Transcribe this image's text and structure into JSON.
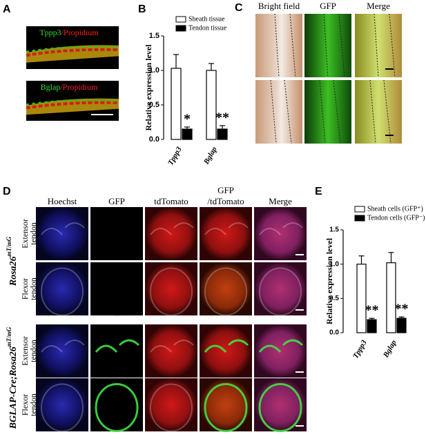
{
  "panel_labels": [
    "A",
    "B",
    "C",
    "D",
    "E"
  ],
  "panel_a": {
    "images": [
      {
        "marker": "Tppp3",
        "stain": "/Propidium"
      },
      {
        "marker": "Bglap",
        "stain": "/Propidium"
      }
    ]
  },
  "chart_data": [
    {
      "type": "bar",
      "y_label": "Relative expression level",
      "categories": [
        "Tppp3",
        "Bglap"
      ],
      "series": [
        {
          "name": "Sheath tissue",
          "color": "#ffffff",
          "values": [
            1.03,
            1.0
          ],
          "errors": [
            0.2,
            0.1
          ]
        },
        {
          "name": "Tendon tissue",
          "color": "#000000",
          "values": [
            0.15,
            0.15
          ],
          "errors": [
            0.03,
            0.05
          ],
          "annotations": [
            "*",
            "**"
          ]
        }
      ],
      "ylim": [
        0,
        1.5
      ],
      "yticks": [
        {
          "value": 0,
          "label": "0.0"
        },
        0.5,
        {
          "value": 1,
          "label": "1.0"
        },
        1.5
      ]
    },
    {
      "type": "bar",
      "y_label": "Relative expression level",
      "categories": [
        "Tppp3",
        "Bglap"
      ],
      "series": [
        {
          "name": "Sheath cells (GFP⁺)",
          "color": "#ffffff",
          "values": [
            1.0,
            1.02
          ],
          "errors": [
            0.12,
            0.15
          ]
        },
        {
          "name": "Tendon cells (GFP⁻)",
          "color": "#000000",
          "values": [
            0.19,
            0.21
          ],
          "errors": [
            0.02,
            0.02
          ],
          "annotations": [
            "**",
            "**"
          ]
        }
      ],
      "ylim": [
        0,
        1.5
      ],
      "yticks": [
        {
          "value": 0,
          "label": "0.0"
        },
        0.5,
        {
          "value": 1,
          "label": "1.0"
        },
        1.5
      ]
    }
  ],
  "panel_c": {
    "columns": [
      "Bright field",
      "GFP",
      "Merge"
    ]
  },
  "panel_d": {
    "columns": [
      {
        "top": "Hoechst"
      },
      {
        "top": "GFP"
      },
      {
        "top": "tdTomato"
      },
      {
        "top": "GFP",
        "bottom": "/tdTomato"
      },
      {
        "top": "Merge"
      }
    ],
    "groups": [
      {
        "label": "Rosa26",
        "superscript": "mT/mG",
        "rows": [
          [
            "Extensor",
            "tendon"
          ],
          [
            "Flexor",
            "tendon"
          ]
        ]
      },
      {
        "label": "BGLAP-Cre;Rosa26",
        "superscript": "mT/mG",
        "rows": [
          [
            "Extensor",
            "tendon"
          ],
          [
            "Flexor",
            "tendon"
          ]
        ]
      }
    ]
  }
}
